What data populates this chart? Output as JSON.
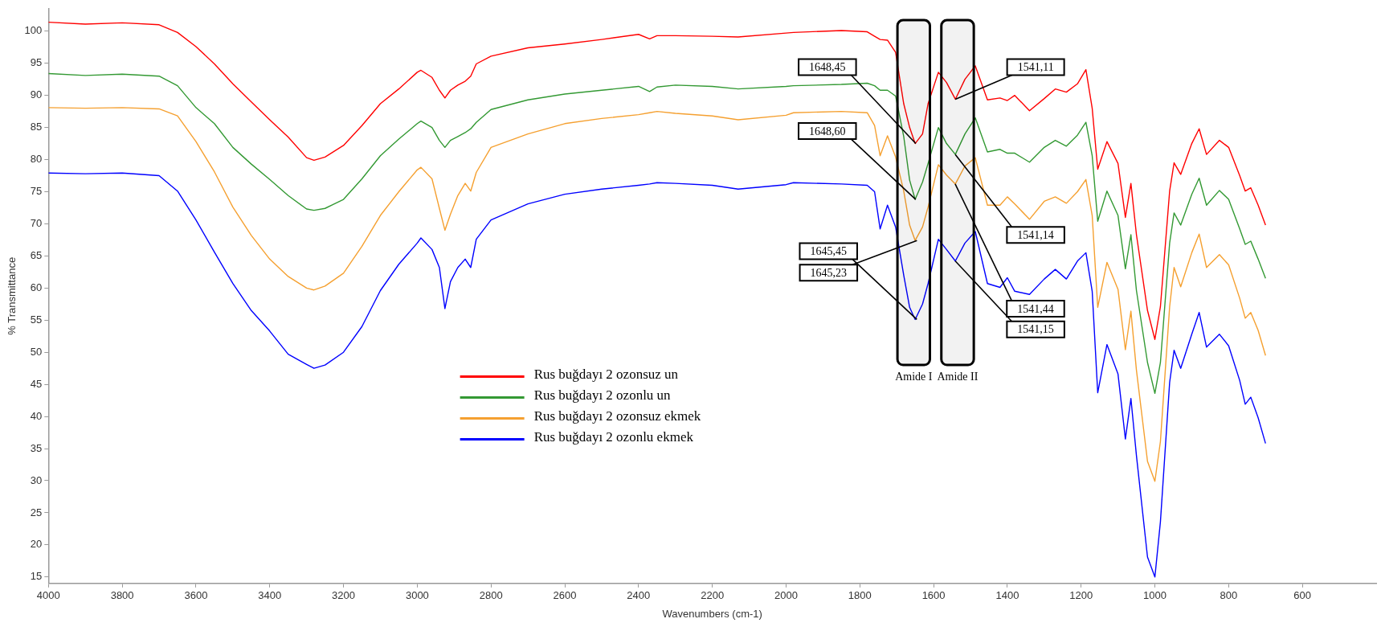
{
  "chart_data": {
    "type": "line",
    "xlabel": "Wavenumbers (cm-1)",
    "ylabel": "% Transmittance",
    "xlim": [
      4000,
      400
    ],
    "xticks": [
      4000,
      3800,
      3600,
      3400,
      3200,
      3000,
      2800,
      2600,
      2400,
      2200,
      2000,
      1800,
      1600,
      1400,
      1200,
      1000,
      800,
      600
    ],
    "ylim": [
      14,
      103.5
    ],
    "yticks": [
      15,
      20,
      25,
      30,
      35,
      40,
      45,
      50,
      55,
      60,
      65,
      70,
      75,
      80,
      85,
      90,
      95,
      100
    ],
    "grid": false,
    "legend": "bottom left",
    "x": [
      4000,
      3900,
      3800,
      3700,
      3650,
      3600,
      3550,
      3500,
      3450,
      3400,
      3350,
      3300,
      3280,
      3250,
      3200,
      3150,
      3100,
      3050,
      3000,
      2990,
      2960,
      2940,
      2925,
      2910,
      2890,
      2870,
      2855,
      2840,
      2800,
      2700,
      2600,
      2500,
      2400,
      2370,
      2350,
      2300,
      2200,
      2130,
      2000,
      1980,
      1850,
      1780,
      1760,
      1745,
      1725,
      1703,
      1681,
      1665,
      1650,
      1630,
      1615,
      1587,
      1565,
      1541,
      1515,
      1487,
      1454,
      1420,
      1400,
      1380,
      1340,
      1300,
      1270,
      1240,
      1210,
      1187,
      1170,
      1155,
      1130,
      1100,
      1080,
      1065,
      1050,
      1020,
      1000,
      985,
      960,
      948,
      930,
      900,
      880,
      860,
      825,
      800,
      770,
      755,
      740,
      720,
      700
    ],
    "series": [
      {
        "name": "Rus buğdayı 2 ozonsuz un",
        "color": "#ff0000",
        "values": [
          101.4,
          101.1,
          101.3,
          101.0,
          99.8,
          97.6,
          94.9,
          91.8,
          89.0,
          86.2,
          83.5,
          80.3,
          79.9,
          80.4,
          82.2,
          85.3,
          88.7,
          91.0,
          93.6,
          93.9,
          92.8,
          90.8,
          89.6,
          90.8,
          91.6,
          92.2,
          93.0,
          94.9,
          96.1,
          97.4,
          98.0,
          98.7,
          99.5,
          98.8,
          99.3,
          99.3,
          99.2,
          99.1,
          99.7,
          99.8,
          100.1,
          99.9,
          99.2,
          98.7,
          98.6,
          96.7,
          88.7,
          85.0,
          82.5,
          84.0,
          88.7,
          93.6,
          92.0,
          89.4,
          92.5,
          94.6,
          89.3,
          89.6,
          89.2,
          90.0,
          87.6,
          89.5,
          91.0,
          90.5,
          91.8,
          94.0,
          88.0,
          78.5,
          82.8,
          79.4,
          71.0,
          76.3,
          68.3,
          56.5,
          52.0,
          57.1,
          75.1,
          79.5,
          77.7,
          82.5,
          84.8,
          80.8,
          83.0,
          81.9,
          77.5,
          75.1,
          75.6,
          72.9,
          69.8
        ]
      },
      {
        "name": "Rus buğdayı 2 ozonlu un",
        "color": "#339933",
        "values": [
          93.4,
          93.1,
          93.3,
          93.0,
          91.5,
          88.1,
          85.6,
          81.9,
          79.3,
          76.9,
          74.4,
          72.3,
          72.1,
          72.4,
          73.8,
          77.0,
          80.6,
          83.2,
          85.6,
          86.0,
          85.0,
          83.0,
          81.9,
          83.0,
          83.6,
          84.2,
          84.8,
          85.8,
          87.8,
          89.3,
          90.2,
          90.8,
          91.4,
          90.6,
          91.3,
          91.6,
          91.4,
          91.0,
          91.4,
          91.5,
          91.7,
          91.9,
          91.5,
          90.8,
          90.8,
          89.9,
          83.6,
          76.8,
          73.8,
          76.5,
          79.4,
          85.0,
          82.5,
          80.8,
          84.0,
          86.5,
          81.2,
          81.6,
          81.0,
          81.0,
          79.6,
          81.9,
          83.0,
          82.1,
          83.8,
          85.8,
          80.6,
          70.4,
          75.1,
          71.3,
          63.0,
          68.3,
          59.6,
          48.4,
          43.6,
          48.4,
          67.0,
          71.7,
          69.8,
          74.6,
          77.1,
          72.9,
          75.2,
          73.8,
          69.2,
          66.8,
          67.3,
          64.5,
          61.5
        ]
      },
      {
        "name": "Rus buğdayı 2 ozonsuz ekmek",
        "color": "#f5a030",
        "values": [
          88.1,
          88.0,
          88.1,
          87.9,
          86.8,
          82.8,
          78.1,
          72.6,
          68.2,
          64.5,
          61.8,
          60.0,
          59.7,
          60.3,
          62.3,
          66.5,
          71.3,
          75.0,
          78.4,
          78.8,
          77.0,
          72.4,
          69.0,
          71.5,
          74.4,
          76.3,
          75.1,
          78.0,
          81.9,
          84.0,
          85.6,
          86.4,
          87.0,
          87.3,
          87.5,
          87.2,
          86.8,
          86.2,
          86.9,
          87.3,
          87.5,
          87.3,
          85.3,
          80.6,
          83.7,
          80.4,
          75.1,
          69.8,
          67.4,
          69.5,
          72.6,
          79.2,
          77.6,
          76.2,
          79.0,
          80.3,
          72.9,
          72.9,
          74.2,
          73.1,
          70.7,
          73.5,
          74.2,
          73.2,
          75.0,
          76.9,
          71.3,
          57.0,
          64.0,
          59.8,
          50.4,
          56.4,
          47.2,
          33.0,
          29.9,
          36.1,
          57.1,
          63.2,
          60.2,
          65.5,
          68.4,
          63.2,
          65.2,
          63.6,
          58.4,
          55.3,
          56.2,
          53.4,
          49.5
        ]
      },
      {
        "name": "Rus buğdayı 2 ozonlu ekmek",
        "color": "#0000ff",
        "values": [
          77.9,
          77.8,
          77.9,
          77.5,
          75.1,
          70.6,
          65.6,
          60.7,
          56.5,
          53.3,
          49.7,
          48.1,
          47.5,
          48.0,
          50.0,
          54.0,
          59.6,
          63.7,
          67.0,
          67.8,
          66.0,
          63.2,
          56.8,
          61.0,
          63.2,
          64.5,
          63.2,
          67.6,
          70.6,
          73.1,
          74.6,
          75.4,
          76.0,
          76.2,
          76.4,
          76.3,
          76.0,
          75.4,
          76.1,
          76.4,
          76.2,
          76.0,
          75.0,
          69.2,
          72.9,
          69.5,
          62.0,
          57.0,
          55.1,
          57.5,
          60.7,
          67.6,
          66.0,
          64.2,
          67.0,
          68.8,
          60.7,
          60.1,
          61.6,
          59.5,
          59.0,
          61.4,
          62.9,
          61.4,
          64.2,
          65.5,
          59.5,
          43.7,
          51.2,
          46.6,
          36.5,
          42.8,
          33.9,
          18.1,
          15.0,
          23.6,
          45.3,
          50.3,
          47.5,
          52.8,
          56.2,
          50.8,
          52.8,
          51.0,
          45.6,
          41.9,
          43.0,
          39.8,
          35.8
        ]
      }
    ],
    "bands": [
      {
        "axis": "x",
        "from": 1698,
        "to": 1610,
        "label": "Amide I"
      },
      {
        "axis": "x",
        "from": 1579,
        "to": 1491,
        "label": "Amide II"
      }
    ],
    "annotations": [
      {
        "text": "1648,45",
        "x": 1648.45,
        "y": 82.5
      },
      {
        "text": "1648,60",
        "x": 1648.6,
        "y": 73.8
      },
      {
        "text": "1645,23",
        "x": 1645.23,
        "y": 67.4
      },
      {
        "text": "1645,45",
        "x": 1645.45,
        "y": 55.1
      },
      {
        "text": "1541,11",
        "x": 1541.11,
        "y": 89.4
      },
      {
        "text": "1541,14",
        "x": 1541.14,
        "y": 80.8
      },
      {
        "text": "1541,44",
        "x": 1541.44,
        "y": 76.2
      },
      {
        "text": "1541,15",
        "x": 1541.15,
        "y": 64.2
      }
    ]
  }
}
